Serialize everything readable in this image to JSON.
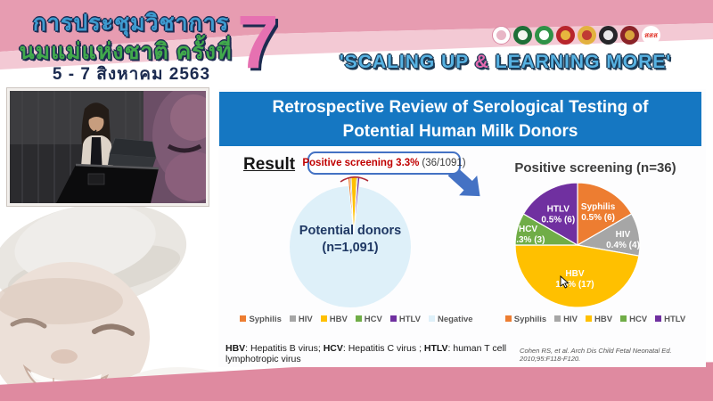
{
  "header": {
    "title_line1": "การประชุมวิชาการ",
    "title_line2": "นมแม่แห่งชาติ ครั้งที่",
    "date_line": "5 - 7 สิงหาคม 2563",
    "edition_number": "7",
    "slogan": {
      "prefix": "'SCALING UP ",
      "amp": "&",
      "suffix": " LEARNING MORE'"
    },
    "logos": [
      {
        "name": "mother-child-foundation-logo",
        "bg": "#ffffff",
        "border": "#d98aa4",
        "inner": "#e8b6c6"
      },
      {
        "name": "ministry-public-health-logo",
        "bg": "#1e6f37",
        "inner": "#f2f7ef"
      },
      {
        "name": "department-of-health-logo",
        "bg": "#2f9247",
        "inner": "#ffffff"
      },
      {
        "name": "rajavithi-hospital-logo",
        "bg": "#b8262c",
        "inner": "#e7b53e"
      },
      {
        "name": "child-health-institute-logo",
        "bg": "#e3b13f",
        "inner": "#c03a33"
      },
      {
        "name": "university-emblem-logo",
        "bg": "#26262a",
        "inner": "#e9e9ea"
      },
      {
        "name": "medical-council-logo",
        "bg": "#8a2328",
        "inner": "#d9a43c"
      },
      {
        "name": "thai-health-promotion-logo",
        "bg": "#ffffff",
        "text": "สสส",
        "text_color": "#e23b30"
      }
    ]
  },
  "slide": {
    "title": "Retrospective Review of Serological Testing of Potential Human Milk Donors",
    "result_label": "Result",
    "callout": {
      "highlight": "Positive screening 3.3%",
      "detail": "(36/1091)"
    },
    "left_center_line1": "Potential donors",
    "left_center_line2": "(n=1,091)",
    "right_title": "Positive screening (n=36)",
    "footnote": {
      "abbr1": "HBV",
      "def1": ": Hepatitis B virus; ",
      "abbr2": "HCV",
      "def2": ": Hepatitis C virus ; ",
      "abbr3": "HTLV",
      "def3": ": human T cell lymphotropic virus"
    },
    "citation": "Cohen RS, et al. Arch Dis Child Fetal Neonatal Ed. 2010;95:F118-F120."
  },
  "chart_data": [
    {
      "type": "pie",
      "title": "Potential donors (n=1,091)",
      "total": 1091,
      "annotation": "Positive screening 3.3% (36/1091)",
      "legend_position": "bottom",
      "slices": [
        {
          "label": "Syphilis",
          "value": 6,
          "color": "#ED7D31"
        },
        {
          "label": "HIV",
          "value": 4,
          "color": "#A6A6A6"
        },
        {
          "label": "HBV",
          "value": 17,
          "color": "#FFC000"
        },
        {
          "label": "HCV",
          "value": 3,
          "color": "#70AD47"
        },
        {
          "label": "HTLV",
          "value": 6,
          "color": "#7030A0"
        },
        {
          "label": "Negative",
          "value": 1055,
          "color": "#DEF0F9"
        }
      ]
    },
    {
      "type": "pie",
      "title": "Positive screening (n=36)",
      "total": 36,
      "legend_position": "bottom",
      "slices": [
        {
          "label": "Syphilis",
          "value": 6,
          "pct": "0.5%",
          "count": 6,
          "color": "#ED7D31"
        },
        {
          "label": "HIV",
          "value": 4,
          "pct": "0.4%",
          "count": 4,
          "color": "#A6A6A6"
        },
        {
          "label": "HBV",
          "value": 17,
          "pct": "1.6%",
          "count": 17,
          "color": "#FFC000"
        },
        {
          "label": "HCV",
          "value": 3,
          "pct": "0.3%",
          "count": 3,
          "color": "#70AD47"
        },
        {
          "label": "HTLV",
          "value": 6,
          "pct": "0.5%",
          "count": 6,
          "color": "#7030A0"
        }
      ]
    }
  ]
}
